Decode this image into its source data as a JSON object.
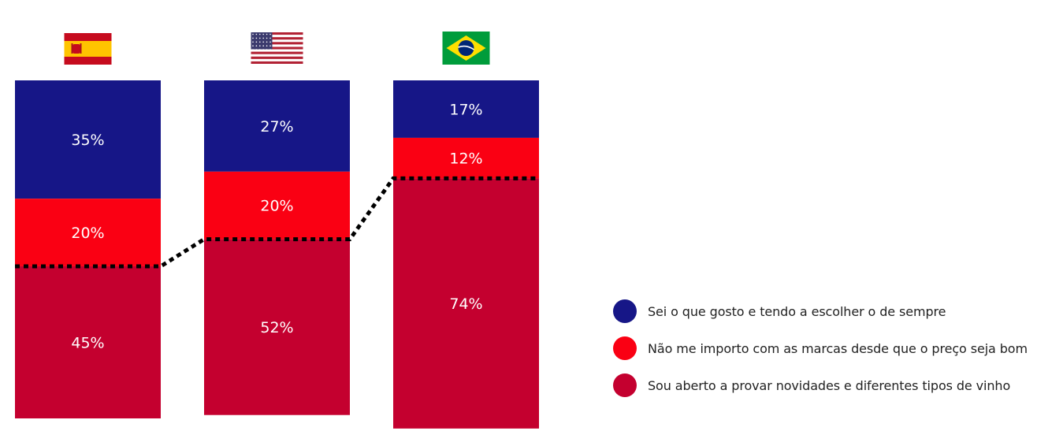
{
  "chart_data": {
    "type": "bar",
    "stacked": true,
    "categories": [
      "Spain",
      "United States",
      "Brazil"
    ],
    "category_flags": [
      "spain-flag-icon",
      "usa-flag-icon",
      "brazil-flag-icon"
    ],
    "series": [
      {
        "name": "Sei o que gosto e tendo a escolher o de sempre",
        "values": [
          35,
          27,
          17
        ],
        "labels": [
          "35%",
          "27%",
          "17%"
        ]
      },
      {
        "name": "Não me importo com as marcas desde que o preço seja bom",
        "values": [
          20,
          20,
          12
        ],
        "labels": [
          "20%",
          "20%",
          "12%"
        ]
      },
      {
        "name": "Sou aberto a provar novidades e diferentes tipos de vinho",
        "values": [
          45,
          52,
          74
        ],
        "labels": [
          "45%",
          "52%",
          "74%"
        ]
      }
    ],
    "stack_order": "top-to-bottom",
    "connector": {
      "style": "dotted",
      "at_boundary": "top of third series"
    },
    "ylim": [
      0,
      100
    ],
    "legend_position": "right",
    "grid": false
  },
  "colors": {
    "series": [
      "#161687",
      "#FA0013",
      "#C4002F"
    ],
    "label_text": "#ffffff",
    "connector": "#000000"
  },
  "legend": {
    "items": [
      {
        "label": "Sei o que gosto e tendo a escolher o de sempre"
      },
      {
        "label": "Não me importo com as marcas desde que o preço seja bom"
      },
      {
        "label": "Sou aberto a provar novidades e diferentes tipos de vinho"
      }
    ]
  }
}
